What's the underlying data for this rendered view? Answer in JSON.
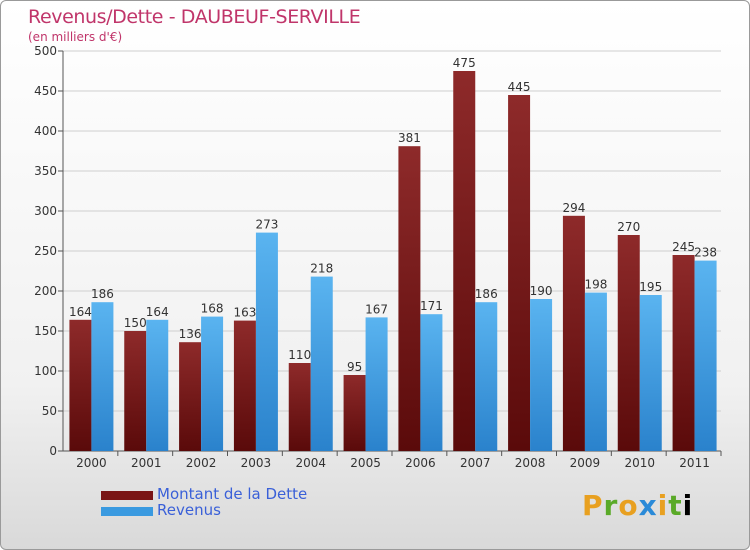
{
  "header": {
    "title": "Revenus/Dette - DAUBEUF-SERVILLE",
    "subtitle": "(en milliers d'€)"
  },
  "legend": {
    "items": [
      {
        "label": "Montant de la Dette",
        "color": "#7a1515"
      },
      {
        "label": "Revenus",
        "color": "#3a9ae0"
      }
    ]
  },
  "logo": {
    "text": "Proxiti",
    "letters": [
      "P",
      "r",
      "o",
      "x",
      "i",
      "t",
      "i"
    ]
  },
  "chart_data": {
    "type": "bar",
    "title": "Revenus/Dette - DAUBEUF-SERVILLE",
    "subtitle": "(en milliers d'€)",
    "categories": [
      "2000",
      "2001",
      "2002",
      "2003",
      "2004",
      "2005",
      "2006",
      "2007",
      "2008",
      "2009",
      "2010",
      "2011"
    ],
    "series": [
      {
        "name": "Montant de la Dette",
        "color": "#7a1515",
        "values": [
          164,
          150,
          136,
          163,
          110,
          95,
          381,
          475,
          445,
          294,
          270,
          245
        ]
      },
      {
        "name": "Revenus",
        "color": "#3a9ae0",
        "values": [
          186,
          164,
          168,
          273,
          218,
          167,
          171,
          186,
          190,
          198,
          195,
          238
        ]
      }
    ],
    "ylim": [
      0,
      500
    ],
    "yticks": [
      0,
      50,
      100,
      150,
      200,
      250,
      300,
      350,
      400,
      450,
      500
    ],
    "grid": true,
    "legend_position": "bottom-left"
  }
}
